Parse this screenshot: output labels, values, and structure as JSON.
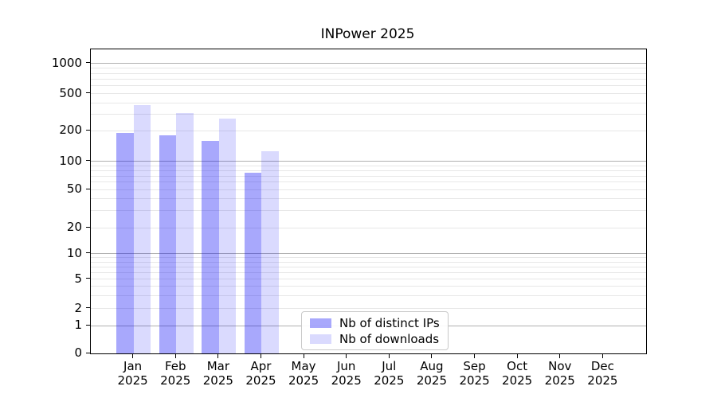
{
  "title": "INPower 2025",
  "chart_data": {
    "type": "bar",
    "title": "INPower 2025",
    "categories": [
      "Jan 2025",
      "Feb 2025",
      "Mar 2025",
      "Apr 2025",
      "May 2025",
      "Jun 2025",
      "Jul 2025",
      "Aug 2025",
      "Sep 2025",
      "Oct 2025",
      "Nov 2025",
      "Dec 2025"
    ],
    "series": [
      {
        "name": "Nb of distinct IPs",
        "color": "rgba(0,0,245,0.34)",
        "values": [
          190,
          180,
          160,
          76,
          null,
          null,
          null,
          null,
          null,
          null,
          null,
          null
        ]
      },
      {
        "name": "Nb of downloads",
        "color": "rgba(0,0,245,0.145)",
        "values": [
          375,
          310,
          270,
          125,
          null,
          null,
          null,
          null,
          null,
          null,
          null,
          null
        ]
      }
    ],
    "yticks": [
      0,
      1,
      2,
      5,
      10,
      20,
      50,
      100,
      200,
      500,
      1000
    ],
    "yscale": "log-like with zero baseline",
    "ylim": [
      0,
      1400
    ],
    "grid": true,
    "legend_position": "lower center"
  },
  "colors": {
    "grid_major": "#b0b0b0",
    "grid_minor": "#e7e7e7",
    "axis": "#000000",
    "background": "#ffffff"
  }
}
